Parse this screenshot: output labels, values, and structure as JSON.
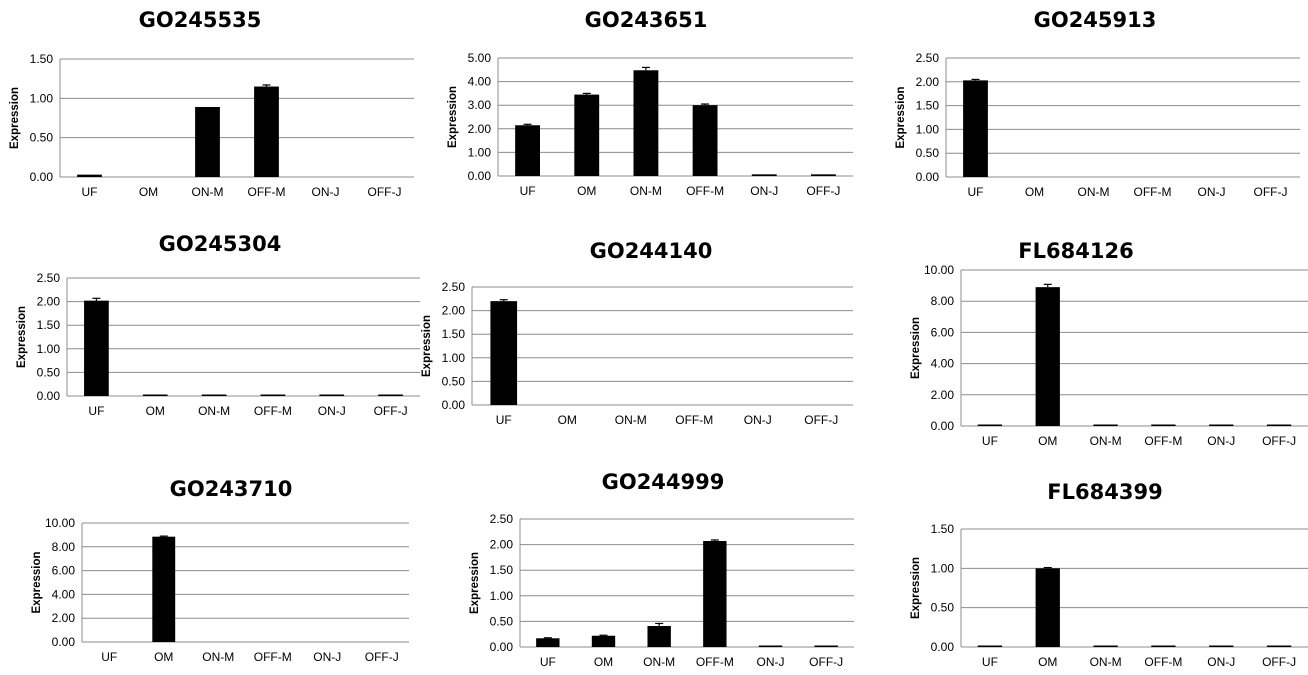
{
  "chart_data": [
    {
      "type": "bar",
      "title": "GO245535",
      "ylabel": "Expression",
      "categories": [
        "UF",
        "OM",
        "ON-M",
        "OFF-M",
        "ON-J",
        "OFF-J"
      ],
      "values": [
        0.03,
        0.0,
        0.89,
        1.15,
        0.0,
        0.0
      ],
      "errors": [
        0,
        0,
        0,
        0.02,
        0,
        0
      ],
      "ylim": [
        0,
        1.5
      ],
      "yticks": [
        "0.00",
        "0.50",
        "1.00",
        "1.50"
      ],
      "grid": true
    },
    {
      "type": "bar",
      "title": "GO243651",
      "ylabel": "Expression",
      "categories": [
        "UF",
        "OM",
        "ON-M",
        "OFF-M",
        "ON-J",
        "OFF-J"
      ],
      "values": [
        2.15,
        3.45,
        4.48,
        3.0,
        0.07,
        0.07
      ],
      "errors": [
        0.04,
        0.05,
        0.12,
        0.05,
        0,
        0
      ],
      "ylim": [
        0,
        5
      ],
      "yticks": [
        "0.00",
        "1.00",
        "2.00",
        "3.00",
        "4.00",
        "5.00"
      ],
      "grid": true
    },
    {
      "type": "bar",
      "title": "GO245913",
      "ylabel": "Expression",
      "categories": [
        "UF",
        "OM",
        "ON-M",
        "OFF-M",
        "ON-J",
        "OFF-J"
      ],
      "values": [
        2.03,
        0.0,
        0.0,
        0.0,
        0.0,
        0.0
      ],
      "errors": [
        0.02,
        0,
        0,
        0,
        0,
        0
      ],
      "ylim": [
        0,
        2.5
      ],
      "yticks": [
        "0.00",
        "0.50",
        "1.00",
        "1.50",
        "2.00",
        "2.50"
      ],
      "grid": true
    },
    {
      "type": "bar",
      "title": "GO245304",
      "ylabel": "Expression",
      "categories": [
        "UF",
        "OM",
        "ON-M",
        "OFF-M",
        "ON-J",
        "OFF-J"
      ],
      "values": [
        2.02,
        0.01,
        0.01,
        0.01,
        0.01,
        0.01
      ],
      "errors": [
        0.05,
        0,
        0,
        0,
        0,
        0
      ],
      "ylim": [
        0,
        2.5
      ],
      "yticks": [
        "0.00",
        "0.50",
        "1.00",
        "1.50",
        "2.00",
        "2.50"
      ],
      "grid": true
    },
    {
      "type": "bar",
      "title": "GO244140",
      "ylabel": "Expression",
      "categories": [
        "UF",
        "OM",
        "ON-M",
        "OFF-M",
        "ON-J",
        "OFF-J"
      ],
      "values": [
        2.2,
        0.0,
        0.0,
        0.0,
        0.0,
        0.0
      ],
      "errors": [
        0.03,
        0,
        0,
        0,
        0,
        0
      ],
      "ylim": [
        0,
        2.5
      ],
      "yticks": [
        "0.00",
        "0.50",
        "1.00",
        "1.50",
        "2.00",
        "2.50"
      ],
      "grid": true
    },
    {
      "type": "bar",
      "title": "FL684126",
      "ylabel": "Expression",
      "categories": [
        "UF",
        "OM",
        "ON-M",
        "OFF-M",
        "ON-J",
        "OFF-J"
      ],
      "values": [
        0.05,
        8.9,
        0.05,
        0.05,
        0.05,
        0.05
      ],
      "errors": [
        0,
        0.18,
        0,
        0,
        0,
        0
      ],
      "ylim": [
        0,
        10
      ],
      "yticks": [
        "0.00",
        "2.00",
        "4.00",
        "6.00",
        "8.00",
        "10.00"
      ],
      "grid": true
    },
    {
      "type": "bar",
      "title": "GO243710",
      "ylabel": "Expression",
      "categories": [
        "UF",
        "OM",
        "ON-M",
        "OFF-M",
        "ON-J",
        "OFF-J"
      ],
      "values": [
        0.0,
        8.85,
        0.0,
        0.0,
        0.0,
        0.0
      ],
      "errors": [
        0,
        0.05,
        0,
        0,
        0,
        0
      ],
      "ylim": [
        0,
        10
      ],
      "yticks": [
        "0.00",
        "2.00",
        "4.00",
        "6.00",
        "8.00",
        "10.00"
      ],
      "grid": true
    },
    {
      "type": "bar",
      "title": "GO244999",
      "ylabel": "Expression",
      "categories": [
        "UF",
        "OM",
        "ON-M",
        "OFF-M",
        "ON-J",
        "OFF-J"
      ],
      "values": [
        0.17,
        0.22,
        0.41,
        2.07,
        0.01,
        0.01
      ],
      "errors": [
        0.01,
        0.01,
        0.05,
        0.02,
        0,
        0
      ],
      "ylim": [
        0,
        2.5
      ],
      "yticks": [
        "0.00",
        "0.50",
        "1.00",
        "1.50",
        "2.00",
        "2.50"
      ],
      "grid": true
    },
    {
      "type": "bar",
      "title": "FL684399",
      "ylabel": "Expression",
      "categories": [
        "UF",
        "OM",
        "ON-M",
        "OFF-M",
        "ON-J",
        "OFF-J"
      ],
      "values": [
        0.01,
        1.0,
        0.01,
        0.01,
        0.01,
        0.01
      ],
      "errors": [
        0,
        0.01,
        0,
        0,
        0,
        0
      ],
      "ylim": [
        0,
        1.5
      ],
      "yticks": [
        "0.00",
        "0.50",
        "1.00",
        "1.50"
      ],
      "grid": true
    }
  ],
  "colors": {
    "bar": "#000000",
    "grid": "#8c8c8c",
    "axis": "#8c8c8c",
    "text": "#000000"
  }
}
